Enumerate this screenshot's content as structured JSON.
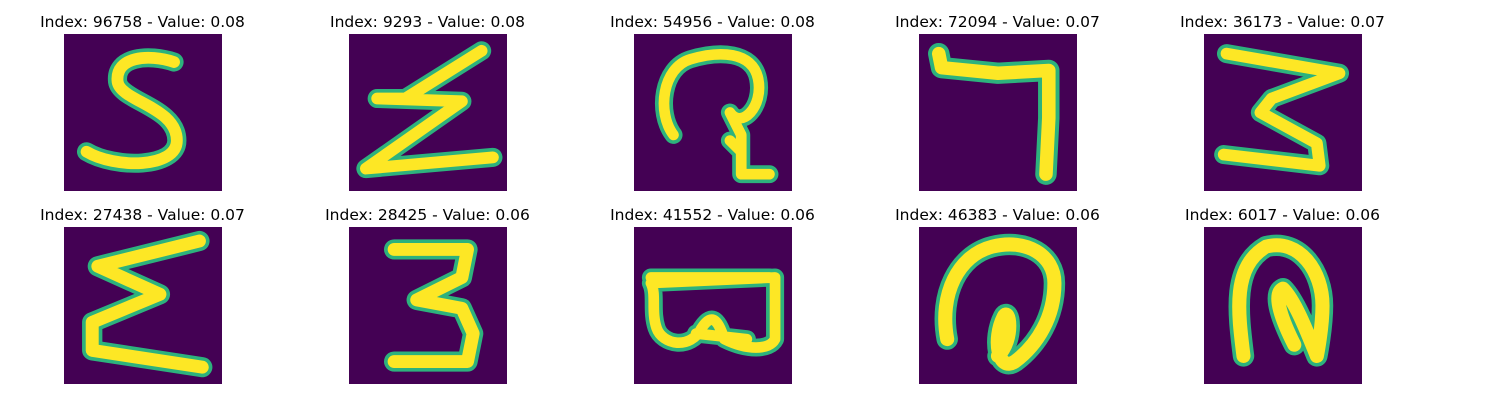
{
  "colors": {
    "background": "#440154",
    "stroke_core": "#fde725",
    "stroke_edge": "#2db27d",
    "stroke_mid": "#b5de2b"
  },
  "panels": [
    {
      "title": "Index: 96758 - Value: 0.08",
      "glyph": "digit-5-icon"
    },
    {
      "title": "Index: 9293 - Value: 0.08",
      "glyph": "zigzag-z-icon"
    },
    {
      "title": "Index: 54956 - Value: 0.08",
      "glyph": "loop-glyph-icon"
    },
    {
      "title": "Index: 72094 - Value: 0.07",
      "glyph": "digit-7-icon"
    },
    {
      "title": "Index: 36173 - Value: 0.07",
      "glyph": "digit-3-icon"
    },
    {
      "title": "Index: 27438 - Value: 0.07",
      "glyph": "sigma-glyph-icon"
    },
    {
      "title": "Index: 28425 - Value: 0.06",
      "glyph": "digit-3-icon"
    },
    {
      "title": "Index: 41552 - Value: 0.06",
      "glyph": "double-loop-glyph-icon"
    },
    {
      "title": "Index: 46383 - Value: 0.06",
      "glyph": "at-glyph-icon"
    },
    {
      "title": "Index: 6017 - Value: 0.06",
      "glyph": "arch-glyph-icon"
    }
  ]
}
